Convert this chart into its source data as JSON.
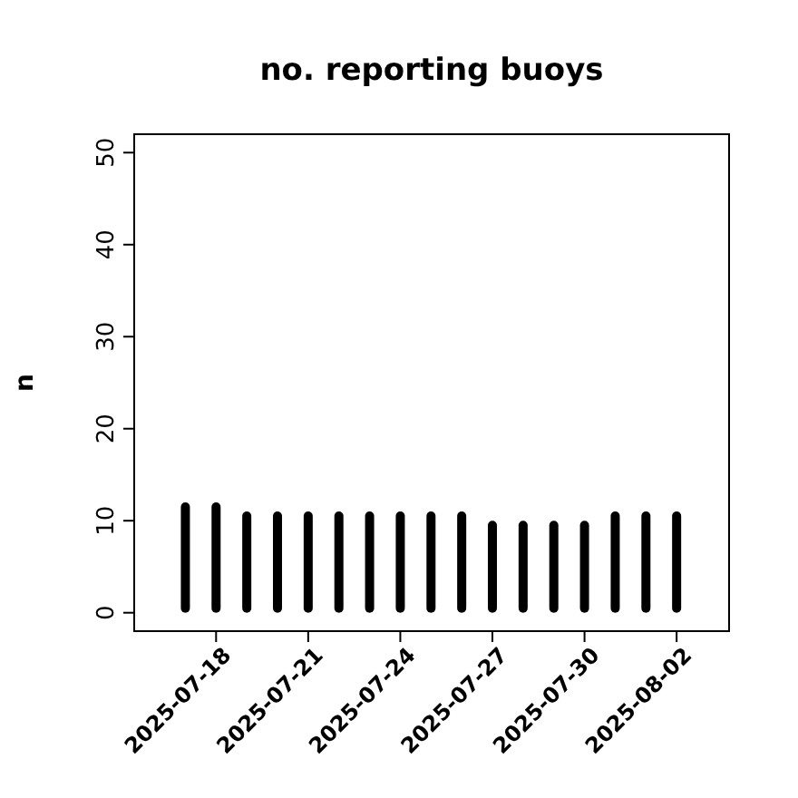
{
  "chart_data": {
    "type": "bar",
    "title": "no. reporting buoys",
    "ylabel": "n",
    "x": [
      "2025-07-17",
      "2025-07-18",
      "2025-07-19",
      "2025-07-20",
      "2025-07-21",
      "2025-07-22",
      "2025-07-23",
      "2025-07-24",
      "2025-07-25",
      "2025-07-26",
      "2025-07-27",
      "2025-07-28",
      "2025-07-29",
      "2025-07-30",
      "2025-07-31",
      "2025-08-01",
      "2025-08-02"
    ],
    "values": [
      12,
      12,
      11,
      11,
      11,
      11,
      11,
      11,
      11,
      11,
      10,
      10,
      10,
      10,
      11,
      11,
      11
    ],
    "color": "#000000",
    "xlim": [
      "2025-07-15T08:00",
      "2025-08-03T17:00"
    ],
    "xticks": [
      "2025-07-18",
      "2025-07-21",
      "2025-07-24",
      "2025-07-27",
      "2025-07-30",
      "2025-08-02"
    ],
    "ylim": [
      -2,
      52
    ],
    "yticks": [
      0,
      10,
      20,
      30,
      40,
      50
    ],
    "grid": false
  }
}
